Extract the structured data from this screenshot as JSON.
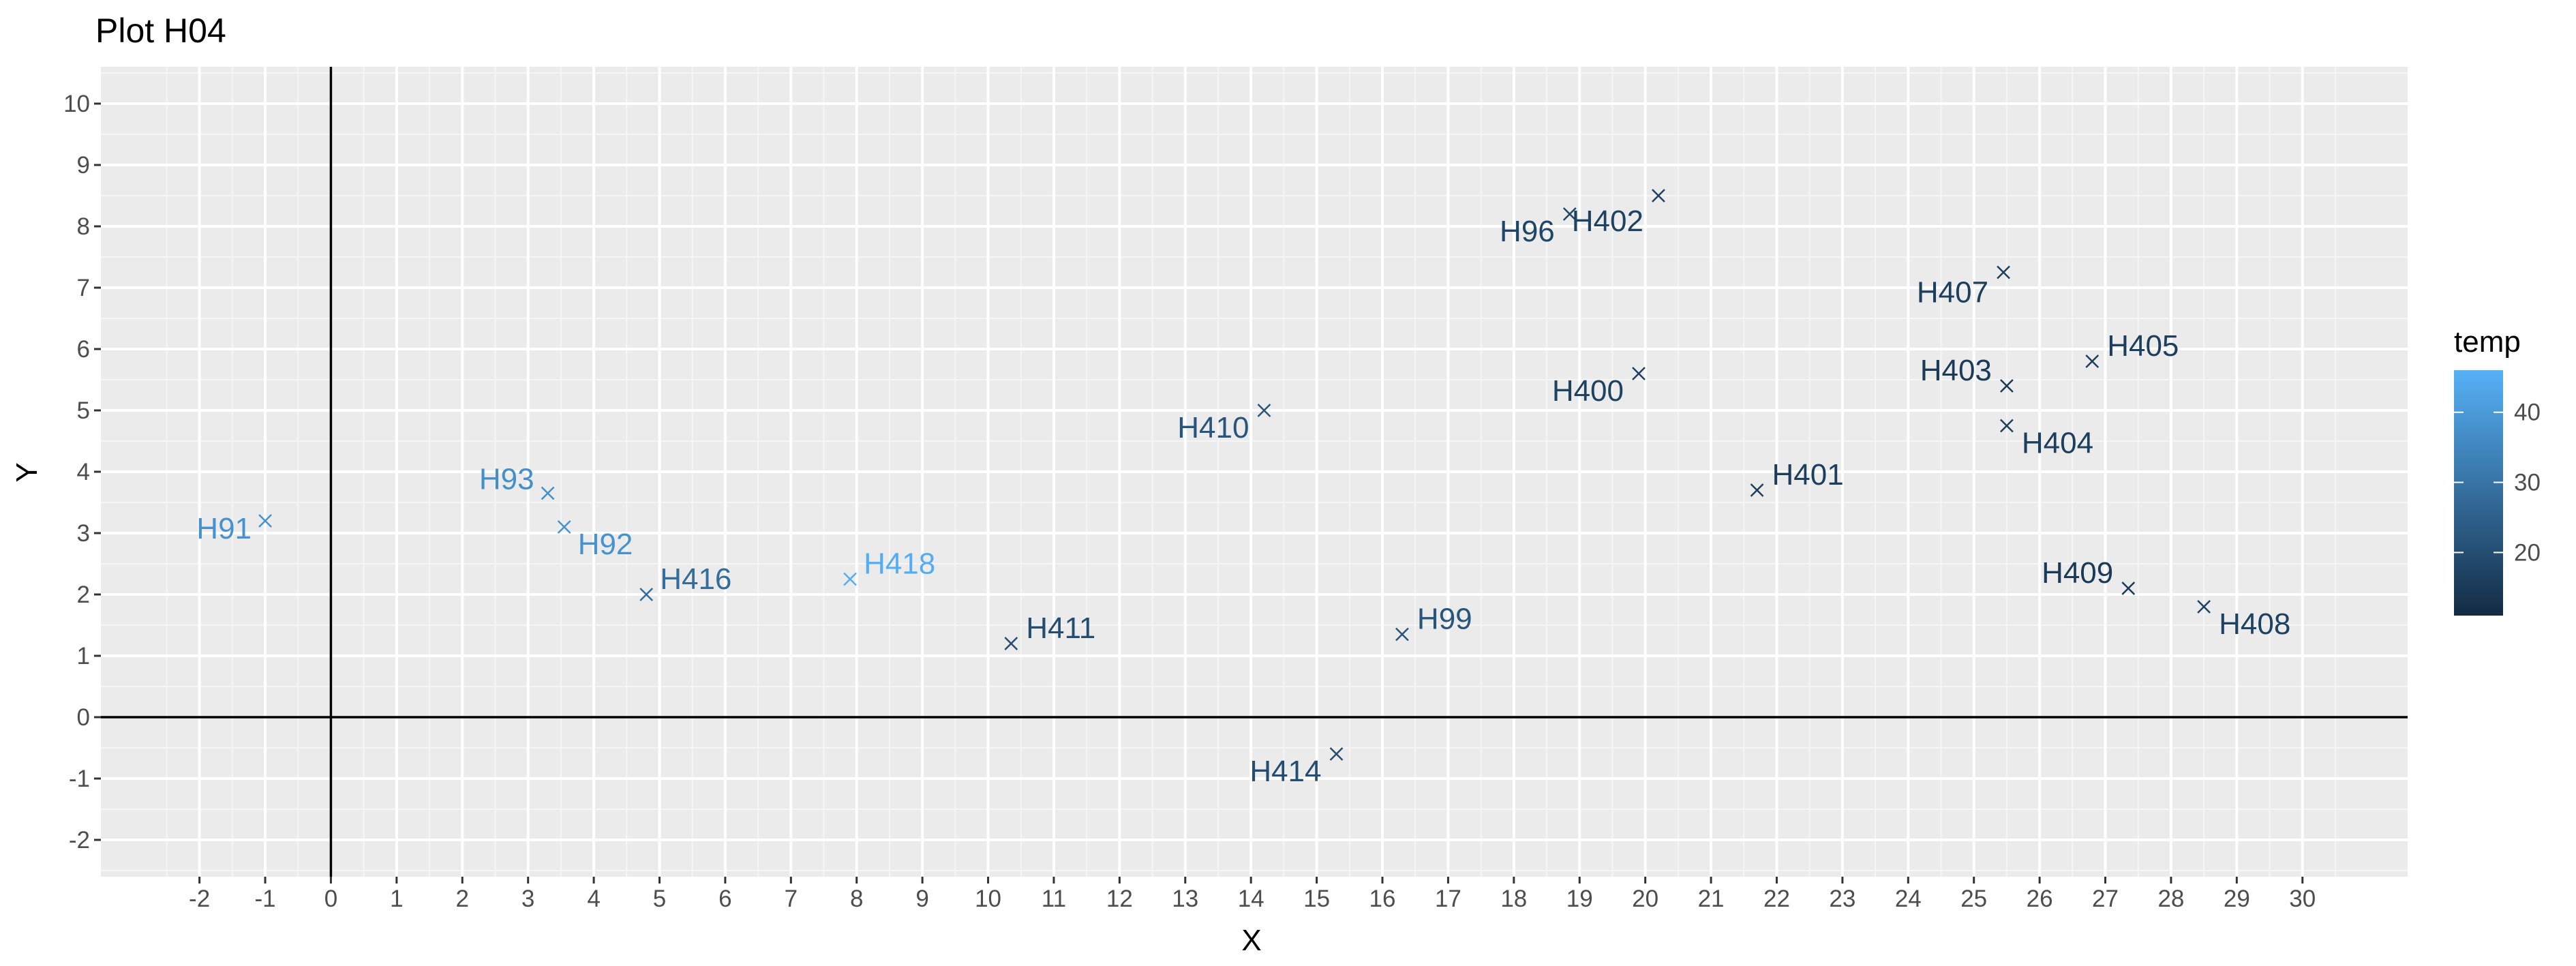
{
  "chart_data": {
    "type": "scatter",
    "title": "Plot H04",
    "xlabel": "X",
    "ylabel": "Y",
    "xlim": [
      -3.5,
      31.6
    ],
    "ylim": [
      -2.6,
      10.6
    ],
    "x_ticks": [
      -2,
      -1,
      0,
      1,
      2,
      3,
      4,
      5,
      6,
      7,
      8,
      9,
      10,
      11,
      12,
      13,
      14,
      15,
      16,
      17,
      18,
      19,
      20,
      21,
      22,
      23,
      24,
      25,
      26,
      27,
      28,
      29,
      30
    ],
    "y_ticks": [
      -2,
      -1,
      0,
      1,
      2,
      3,
      4,
      5,
      6,
      7,
      8,
      9,
      10
    ],
    "grid": true,
    "reference_lines": {
      "x": 0,
      "y": 0
    },
    "marker": "x",
    "legend": {
      "title": "temp",
      "type": "colorbar",
      "position": "right",
      "ticks": [
        20,
        30,
        40
      ],
      "range": [
        11,
        46
      ],
      "low_color": "#132B43",
      "high_color": "#56B1F7"
    },
    "points": [
      {
        "label": "H91",
        "x": -1.0,
        "y": 3.2,
        "temp": 38
      },
      {
        "label": "H93",
        "x": 3.3,
        "y": 3.65,
        "temp": 37
      },
      {
        "label": "H92",
        "x": 3.55,
        "y": 3.1,
        "temp": 38
      },
      {
        "label": "H416",
        "x": 4.8,
        "y": 2.0,
        "temp": 28
      },
      {
        "label": "H418",
        "x": 7.9,
        "y": 2.25,
        "temp": 45
      },
      {
        "label": "H411",
        "x": 10.35,
        "y": 1.2,
        "temp": 20
      },
      {
        "label": "H410",
        "x": 14.2,
        "y": 5.0,
        "temp": 22
      },
      {
        "label": "H414",
        "x": 15.3,
        "y": -0.6,
        "temp": 20
      },
      {
        "label": "H99",
        "x": 16.3,
        "y": 1.35,
        "temp": 22
      },
      {
        "label": "H96",
        "x": 18.85,
        "y": 8.2,
        "temp": 18
      },
      {
        "label": "H402",
        "x": 20.2,
        "y": 8.5,
        "temp": 17
      },
      {
        "label": "H400",
        "x": 19.9,
        "y": 5.6,
        "temp": 17
      },
      {
        "label": "H401",
        "x": 21.7,
        "y": 3.7,
        "temp": 16
      },
      {
        "label": "H407",
        "x": 25.45,
        "y": 7.25,
        "temp": 16
      },
      {
        "label": "H403",
        "x": 25.5,
        "y": 5.4,
        "temp": 15
      },
      {
        "label": "H404",
        "x": 25.5,
        "y": 4.75,
        "temp": 16
      },
      {
        "label": "H405",
        "x": 26.8,
        "y": 5.8,
        "temp": 16
      },
      {
        "label": "H409",
        "x": 27.35,
        "y": 2.1,
        "temp": 15
      },
      {
        "label": "H408",
        "x": 28.5,
        "y": 1.8,
        "temp": 17
      }
    ]
  }
}
